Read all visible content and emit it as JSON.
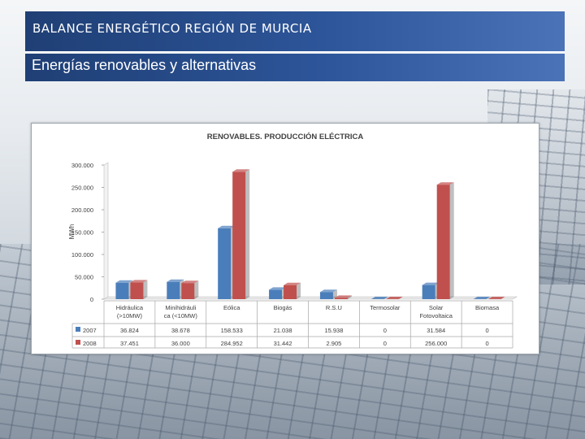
{
  "slide": {
    "title": "BALANCE ENERGÉTICO REGIÓN DE MURCIA",
    "subtitle": "Energías renovables y alternativas"
  },
  "colors": {
    "s2007": "#4a7ebb",
    "s2008": "#c0504d",
    "header": "#2d5599"
  },
  "chart_data": {
    "type": "bar",
    "title": "RENOVABLES. PRODUCCIÓN ELÉCTRICA",
    "ylabel": "MWh",
    "xlabel": "",
    "ylim": [
      0,
      300000
    ],
    "yticks": [
      0,
      50000,
      100000,
      150000,
      200000,
      250000,
      300000
    ],
    "ytick_labels": [
      "0",
      "50.000",
      "100.000",
      "150.000",
      "200.000",
      "250.000",
      "300.000"
    ],
    "grid": false,
    "legend": "table-left",
    "categories": [
      [
        "Hidráulica",
        "(>10MW)"
      ],
      [
        "Minihidráuli",
        "ca (<10MW)"
      ],
      [
        "Eólica"
      ],
      [
        "Biogás"
      ],
      [
        "R.S.U"
      ],
      [
        "Termosolar"
      ],
      [
        "Solar",
        "Fotovoltaica"
      ],
      [
        "Biomasa"
      ]
    ],
    "series": [
      {
        "name": "2007",
        "values": [
          36824,
          38678,
          158533,
          21038,
          15938,
          0,
          31584,
          0
        ],
        "labels": [
          "36.824",
          "38.678",
          "158.533",
          "21.038",
          "15.938",
          "0",
          "31.584",
          "0"
        ]
      },
      {
        "name": "2008",
        "values": [
          37451,
          36000,
          284952,
          31442,
          2905,
          0,
          256000,
          0
        ],
        "labels": [
          "37.451",
          "36.000",
          "284.952",
          "31.442",
          "2.905",
          "0",
          "256.000",
          "0"
        ]
      }
    ]
  }
}
